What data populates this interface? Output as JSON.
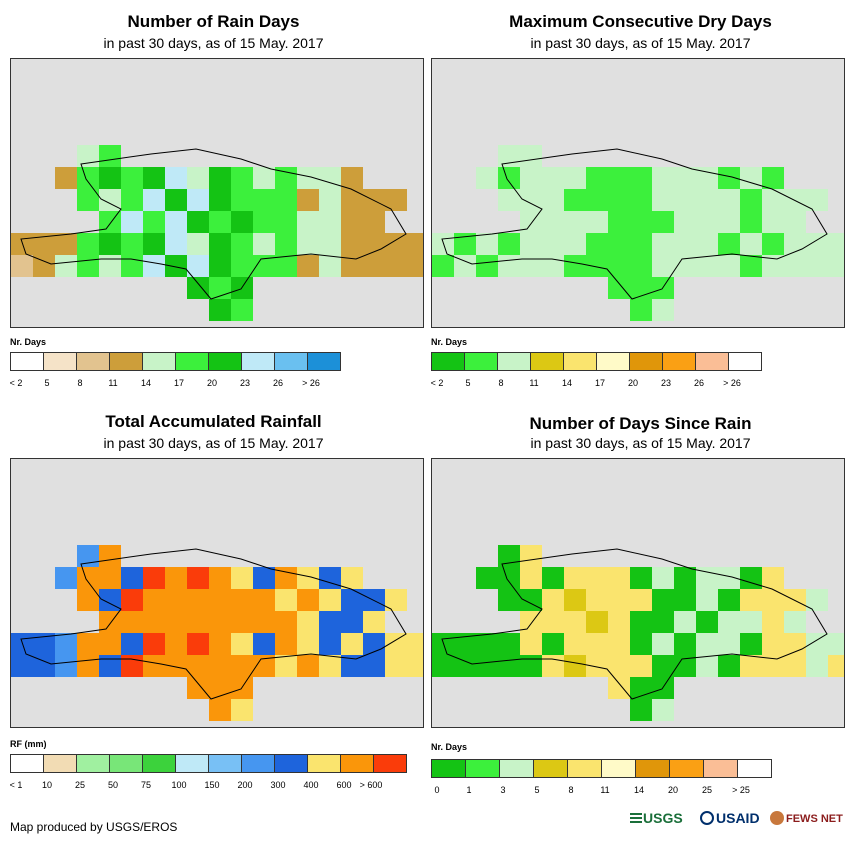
{
  "panels": [
    {
      "id": "rain-days",
      "title": "Number of Rain Days",
      "subtitle": "in past 30 days, as of 15 May. 2017",
      "legend_title": "Nr. Days",
      "legend_colors": [
        "#ffffff",
        "#f5e3c8",
        "#e2c38f",
        "#cd9e3a",
        "#c8f3c8",
        "#3cf03c",
        "#14c314",
        "#bfe9f7",
        "#6ac0f0",
        "#1c90d8"
      ],
      "legend_labels": [
        "< 2",
        "5",
        "8",
        "11",
        "14",
        "17",
        "20",
        "23",
        "26",
        "> 26"
      ]
    },
    {
      "id": "max-dry-days",
      "title": "Maximum Consecutive Dry Days",
      "subtitle": "in past 30 days, as of 15 May. 2017",
      "legend_title": "Nr. Days",
      "legend_colors": [
        "#14c314",
        "#3cf03c",
        "#c8f3c8",
        "#dcc814",
        "#fae46e",
        "#fffac8",
        "#e0960a",
        "#faa014",
        "#fabe96",
        "#ffffff"
      ],
      "legend_labels": [
        "< 2",
        "5",
        "8",
        "11",
        "14",
        "17",
        "20",
        "23",
        "26",
        "> 26"
      ]
    },
    {
      "id": "total-rainfall",
      "title": "Total Accumulated Rainfall",
      "subtitle": "in past 30 days, as of 15 May. 2017",
      "legend_title": "RF (mm)",
      "legend_colors": [
        "#ffffff",
        "#f2dcb4",
        "#a0f0a0",
        "#78e678",
        "#3cd23c",
        "#bfe9f7",
        "#78c0f5",
        "#4696f0",
        "#1e64dc",
        "#fae46e",
        "#fa960a",
        "#fa3c0a"
      ],
      "legend_labels": [
        "< 1",
        "10",
        "25",
        "50",
        "75",
        "100",
        "150",
        "200",
        "300",
        "400",
        "600",
        "> 600"
      ]
    },
    {
      "id": "days-since-rain",
      "title": "Number of Days Since Rain",
      "subtitle": "in past 30 days, as of 15 May. 2017",
      "legend_title": "Nr. Days",
      "legend_colors": [
        "#14c314",
        "#3cf03c",
        "#c8f3c8",
        "#dcc814",
        "#fae46e",
        "#fffac8",
        "#e0960a",
        "#faa014",
        "#fabe96",
        "#ffffff"
      ],
      "legend_labels": [
        "0",
        "1",
        "3",
        "5",
        "8",
        "11",
        "14",
        "20",
        "25",
        "> 25"
      ]
    }
  ],
  "footer": "Map produced by USGS/EROS",
  "logos": {
    "usgs": "USGS",
    "usaid": "USAID",
    "fewsnet": "FEWS NET"
  }
}
